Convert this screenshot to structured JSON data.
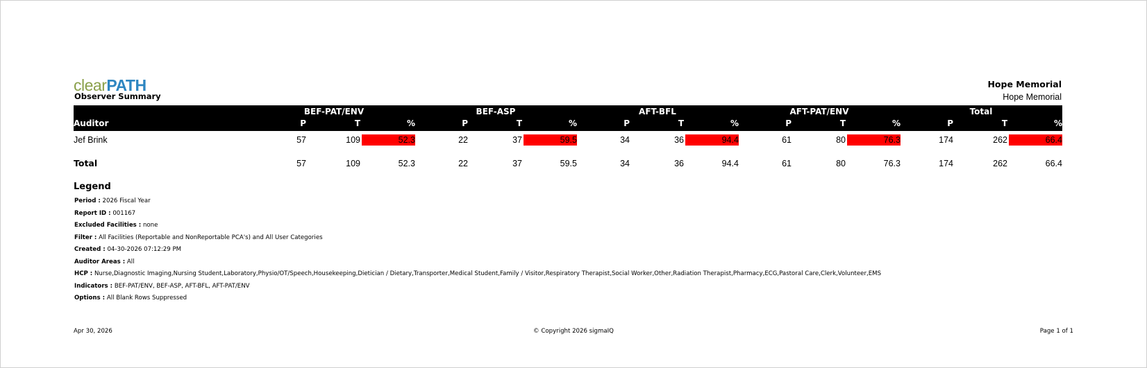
{
  "brand": {
    "logo_part1": "clear",
    "logo_part2": "PATH"
  },
  "report": {
    "title": "Observer Summary",
    "facility_header": "Hope Memorial",
    "facility_sub": "Hope Memorial"
  },
  "table": {
    "auditor_header": "Auditor",
    "groups": [
      "BEF-PAT/ENV",
      "BEF-ASP",
      "AFT-BFL",
      "AFT-PAT/ENV",
      "Total"
    ],
    "subcolumns": [
      "P",
      "T",
      "%"
    ],
    "rows": [
      {
        "auditor": "Jef Brink",
        "values": [
          "57",
          "109",
          "52.3",
          "22",
          "37",
          "59.5",
          "34",
          "36",
          "94.4",
          "61",
          "80",
          "76.3",
          "174",
          "262",
          "66.4"
        ]
      }
    ],
    "total": {
      "label": "Total",
      "values": [
        "57",
        "109",
        "52.3",
        "22",
        "37",
        "59.5",
        "34",
        "36",
        "94.4",
        "61",
        "80",
        "76.3",
        "174",
        "262",
        "66.4"
      ]
    },
    "highlight_color": "#ff0000"
  },
  "legend": {
    "heading": "Legend",
    "items": [
      {
        "label": "Period :",
        "value": "2026 Fiscal Year"
      },
      {
        "label": "Report ID :",
        "value": "001167"
      },
      {
        "label": "Excluded Facilities :",
        "value": "none"
      },
      {
        "label": "Filter :",
        "value": "All Facilities (Reportable and NonReportable PCA's) and All User Categories"
      },
      {
        "label": "Created :",
        "value": "04-30-2026 07:12:29 PM"
      },
      {
        "label": "Auditor Areas :",
        "value": "All"
      },
      {
        "label": "HCP :",
        "value": "Nurse,Diagnostic Imaging,Nursing Student,Laboratory,Physio/OT/Speech,Housekeeping,Dietician / Dietary,Transporter,Medical Student,Family / Visitor,Respiratory Therapist,Social Worker,Other,Radiation Therapist,Pharmacy,ECG,Pastoral Care,Clerk,Volunteer,EMS"
      },
      {
        "label": "Indicators :",
        "value": "BEF-PAT/ENV, BEF-ASP, AFT-BFL, AFT-PAT/ENV"
      },
      {
        "label": "Options :",
        "value": "All Blank Rows Suppressed"
      }
    ]
  },
  "footer": {
    "date": "Apr 30, 2026",
    "copyright": "© Copyright 2026 sigmaIQ",
    "page": "Page 1 of 1"
  }
}
